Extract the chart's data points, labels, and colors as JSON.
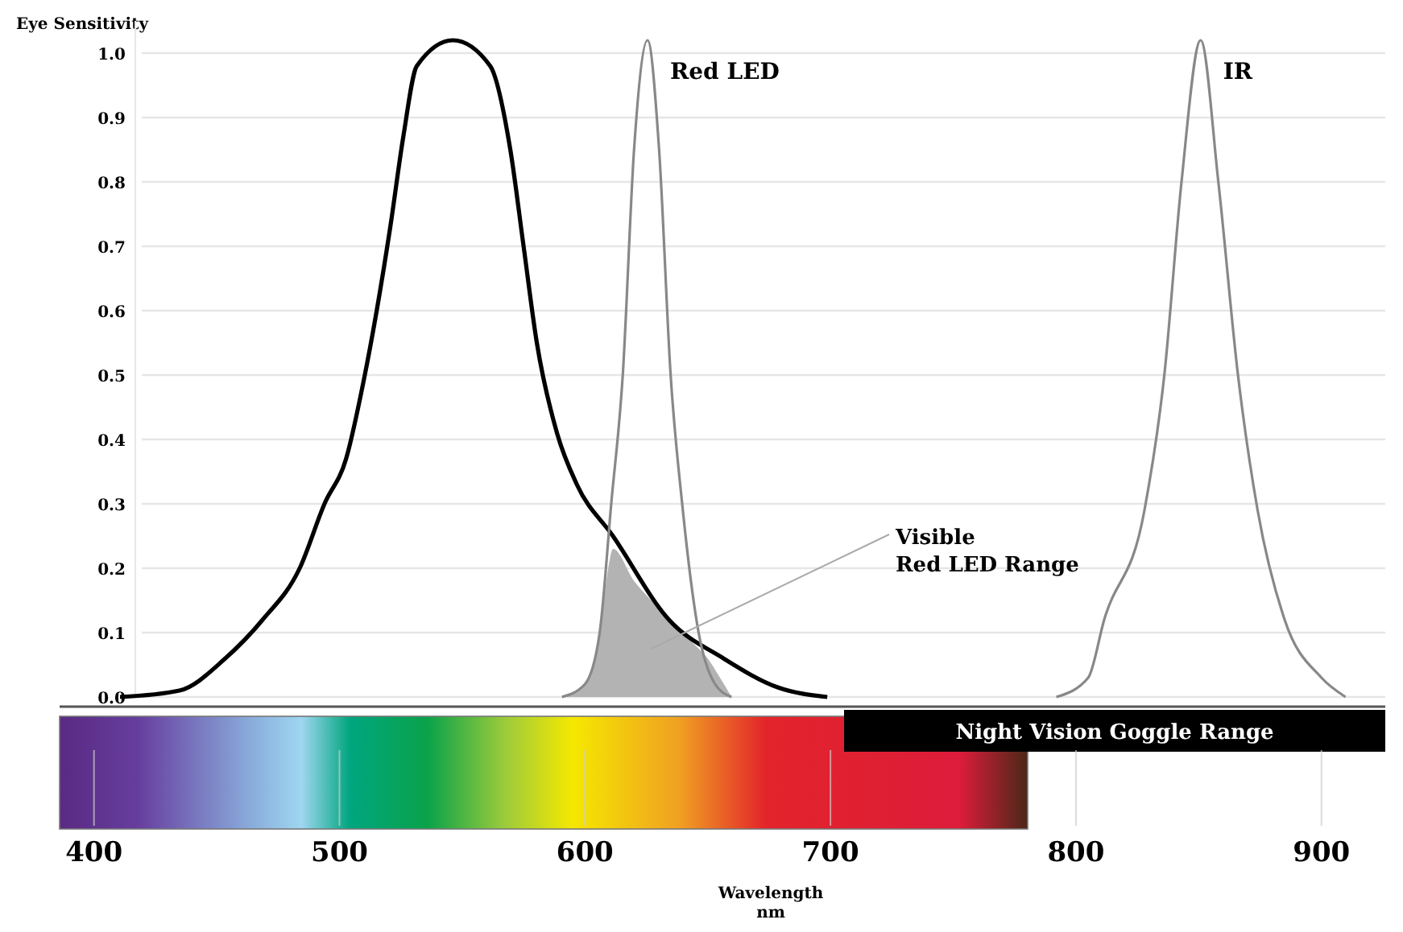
{
  "chart_data": {
    "type": "line",
    "ylabel": "Eye Sensitivity",
    "xlabel": "Wavelength\nnm",
    "xlim": [
      386,
      926
    ],
    "xticks": [
      400,
      500,
      600,
      700,
      800,
      900
    ],
    "ylim": [
      0,
      1.05
    ],
    "yticks": [
      {
        "value": 0,
        "label": "0.0"
      },
      0.1,
      0.2,
      0.3,
      0.4,
      0.5,
      0.6,
      0.7,
      0.8,
      0.9,
      {
        "value": 1,
        "label": "1.0"
      }
    ],
    "grid": "y",
    "marker": "none",
    "line_style": "solid",
    "series": [
      {
        "type": "area",
        "color": "#b3b3b3",
        "x": [
          590.6,
          600,
          606,
          609.5,
          611.4,
          620,
          627,
          634.2,
          645,
          650,
          655,
          659.7
        ],
        "values": [
          0,
          0.02,
          0.1,
          0.2,
          0.23,
          0.18,
          0.15,
          0.12,
          0.08,
          0.06,
          0.03,
          0
        ]
      },
      {
        "color": "#000000",
        "x": [
          410.6,
          434.8,
          453.5,
          468.7,
          483.8,
          493.9,
          502.7,
          509.8,
          520.7,
          526,
          531.5,
          546.2,
          561.4,
          569.6,
          575,
          580.4,
          588.6,
          596.7,
          611.4,
          634.2,
          656.4,
          678.5,
          698.7
        ],
        "values": [
          0,
          0.01,
          0.06,
          0.12,
          0.2,
          0.3,
          0.37,
          0.49,
          0.73,
          0.87,
          0.98,
          1.02,
          0.98,
          0.85,
          0.7,
          0.55,
          0.41,
          0.33,
          0.25,
          0.12,
          0.06,
          0.015,
          0
        ]
      },
      {
        "name": "Red LED",
        "color": "#888888",
        "x": [
          590.6,
          600,
          606,
          610.7,
          615.4,
          620,
          625.5,
          630.2,
          634.9,
          639.6,
          646.3,
          653,
          659.7
        ],
        "values": [
          0,
          0.02,
          0.1,
          0.3,
          0.5,
          0.85,
          1.02,
          0.85,
          0.5,
          0.3,
          0.1,
          0.02,
          0
        ]
      },
      {
        "name": "IR",
        "color": "#888888",
        "x": [
          792,
          805,
          811.5,
          827.9,
          836,
          843,
          850.8,
          858,
          866,
          874,
          885,
          900,
          909.8
        ],
        "values": [
          0,
          0.03,
          0.12,
          0.29,
          0.5,
          0.8,
          1.02,
          0.8,
          0.5,
          0.29,
          0.12,
          0.03,
          0
        ]
      }
    ],
    "annotations": [
      "Visible\nRed LED Range",
      "Night Vision Goggle Range"
    ]
  }
}
